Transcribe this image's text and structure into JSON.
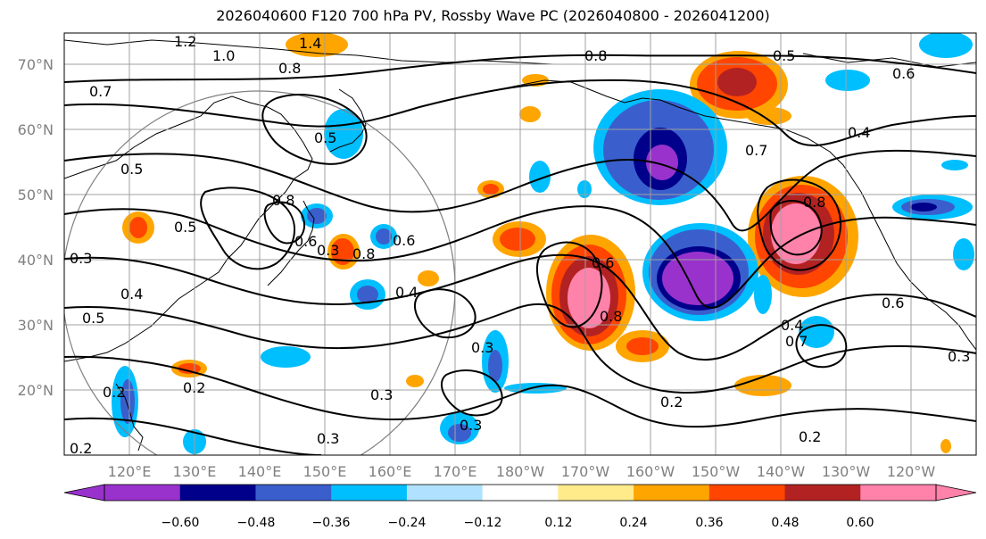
{
  "title": "2026040600 F120 700 hPa PV, Rossby Wave PC (2026040800 - 2026041200)",
  "lat_labels": [
    "70°N",
    "60°N",
    "50°N",
    "40°N",
    "30°N",
    "20°N"
  ],
  "lon_labels": [
    "120°E",
    "130°E",
    "140°E",
    "150°E",
    "160°E",
    "170°E",
    "180°W",
    "170°W",
    "160°W",
    "150°W",
    "140°W",
    "130°W",
    "120°W"
  ],
  "contour_labels": [
    "1.2",
    "1.4",
    "1.0",
    "0.8",
    "0.8",
    "0.5",
    "0.6",
    "0.7",
    "0.5",
    "0.7",
    "0.4",
    "0.3",
    "0.5",
    "0.5",
    "0.3",
    "0.8",
    "0.8",
    "0.6",
    "0.4",
    "0.4",
    "0.5",
    "0.3",
    "0.3",
    "0.6",
    "0.8",
    "0.4",
    "0.7",
    "0.8",
    "0.6",
    "0.2",
    "0.2",
    "0.3",
    "0.3",
    "0.2",
    "0.2",
    "0.3",
    "0.6",
    "0.2"
  ],
  "colorbar": {
    "ticks": [
      "−0.60",
      "−0.48",
      "−0.36",
      "−0.24",
      "−0.12",
      "0.12",
      "0.24",
      "0.36",
      "0.48",
      "0.60"
    ],
    "colors": [
      "#9932cc",
      "#00008b",
      "#3a5fcd",
      "#00bfff",
      "#b0e2ff",
      "#ffffff",
      "#ffeb8a",
      "#ffa500",
      "#ff4500",
      "#b22222",
      "#ff82ab"
    ]
  }
}
